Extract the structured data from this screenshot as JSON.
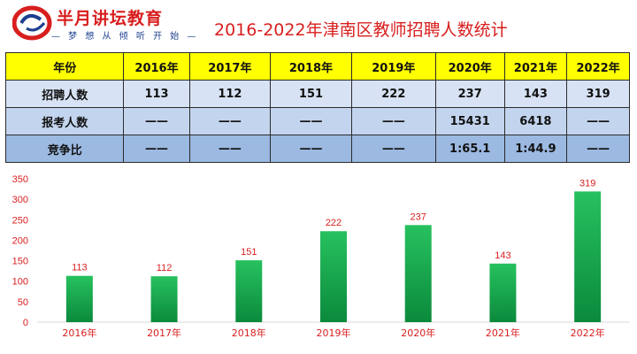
{
  "logo": {
    "brand": "半月讲坛教育",
    "slogan": "— 梦 想 从 倾 听 开 始 —"
  },
  "title": "2016-2022年津南区教师招聘人数统计",
  "table": {
    "header": [
      "年份",
      "2016年",
      "2017年",
      "2018年",
      "2019年",
      "2020年",
      "2021年",
      "2022年"
    ],
    "rows": [
      [
        "招聘人数",
        "113",
        "112",
        "151",
        "222",
        "237",
        "143",
        "319"
      ],
      [
        "报考人数",
        "——",
        "——",
        "——",
        "——",
        "15431",
        "6418",
        "——"
      ],
      [
        "竞争比",
        "——",
        "——",
        "——",
        "——",
        "1:65.1",
        "1:44.9",
        "——"
      ]
    ]
  },
  "chart_data": {
    "type": "bar",
    "categories": [
      "2016年",
      "2017年",
      "2018年",
      "2019年",
      "2020年",
      "2021年",
      "2022年"
    ],
    "values": [
      113,
      112,
      151,
      222,
      237,
      143,
      319
    ],
    "ylim": [
      0,
      350
    ],
    "yticks": [
      0,
      50,
      100,
      150,
      200,
      250,
      300,
      350
    ],
    "grid": false,
    "colors": {
      "bar_top": "#27c15f",
      "bar_bottom": "#0b8a3c",
      "label": "#d81e1e",
      "axis": "#d9d9d9"
    }
  }
}
